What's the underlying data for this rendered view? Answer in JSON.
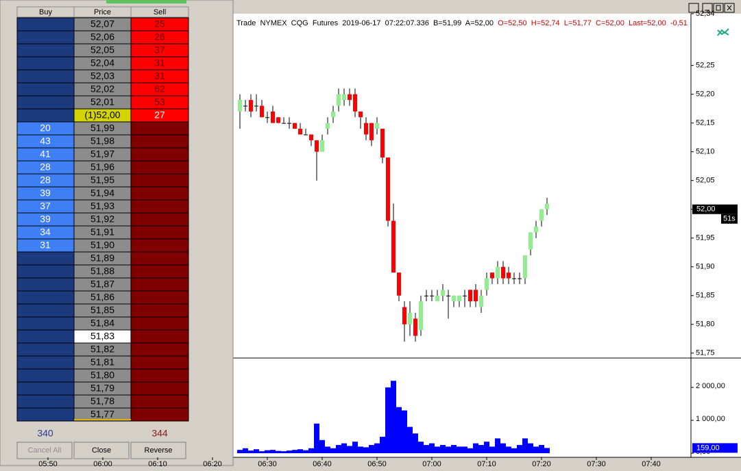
{
  "ladder": {
    "headers": [
      "Buy",
      "Price",
      "Sell"
    ],
    "rows": [
      {
        "price": "52,07",
        "buy": null,
        "sell": 25
      },
      {
        "price": "52,06",
        "buy": null,
        "sell": 26
      },
      {
        "price": "52,05",
        "buy": null,
        "sell": 37
      },
      {
        "price": "52,04",
        "buy": null,
        "sell": 31
      },
      {
        "price": "52,03",
        "buy": null,
        "sell": 31
      },
      {
        "price": "52,02",
        "buy": null,
        "sell": 62
      },
      {
        "price": "52,01",
        "buy": null,
        "sell": 53
      },
      {
        "price": "(1)52,00",
        "buy": null,
        "sell": 27
      },
      {
        "price": "51,99",
        "buy": 20,
        "sell": null
      },
      {
        "price": "51,98",
        "buy": 43,
        "sell": null
      },
      {
        "price": "51,97",
        "buy": 41,
        "sell": null
      },
      {
        "price": "51,96",
        "buy": 28,
        "sell": null
      },
      {
        "price": "51,95",
        "buy": 28,
        "sell": null
      },
      {
        "price": "51,94",
        "buy": 39,
        "sell": null
      },
      {
        "price": "51,93",
        "buy": 37,
        "sell": null
      },
      {
        "price": "51,92",
        "buy": 39,
        "sell": null
      },
      {
        "price": "51,91",
        "buy": 34,
        "sell": null
      },
      {
        "price": "51,90",
        "buy": 31,
        "sell": null
      },
      {
        "price": "51,89",
        "buy": null,
        "sell": null
      },
      {
        "price": "51,88",
        "buy": null,
        "sell": null
      },
      {
        "price": "51,87",
        "buy": null,
        "sell": null
      },
      {
        "price": "51,86",
        "buy": null,
        "sell": null
      },
      {
        "price": "51,85",
        "buy": null,
        "sell": null
      },
      {
        "price": "51,84",
        "buy": null,
        "sell": null
      },
      {
        "price": "51,83",
        "buy": null,
        "sell": null
      },
      {
        "price": "51,82",
        "buy": null,
        "sell": null
      },
      {
        "price": "51,81",
        "buy": null,
        "sell": null
      },
      {
        "price": "51,80",
        "buy": null,
        "sell": null
      },
      {
        "price": "51,79",
        "buy": null,
        "sell": null
      },
      {
        "price": "51,78",
        "buy": null,
        "sell": null
      },
      {
        "price": "51,77",
        "buy": null,
        "sell": null
      }
    ],
    "totals": {
      "buy": 340,
      "sell": 344
    },
    "buttons": [
      "Cancel All",
      "Close",
      "Reverse"
    ]
  },
  "chart_data": {
    "type": "candlestick",
    "info": [
      {
        "text": "Trade  NYMEX  CQG  Futures  2019-06-17  07:22:07.336  B=51,99  A=52,00  ",
        "color": "#000000"
      },
      {
        "text": "O=52,50  H=52,74  L=51,77  C=52,00  Last=52,00  -0,51",
        "color": "#cc0000"
      }
    ],
    "x": [
      "06:25",
      "06:26",
      "06:27",
      "06:28",
      "06:29",
      "06:30",
      "06:31",
      "06:32",
      "06:33",
      "06:34",
      "06:35",
      "06:36",
      "06:37",
      "06:38",
      "06:39",
      "06:40",
      "06:41",
      "06:42",
      "06:43",
      "06:44",
      "06:45",
      "06:46",
      "06:47",
      "06:48",
      "06:49",
      "06:50",
      "06:51",
      "06:52",
      "06:53",
      "06:54",
      "06:55",
      "06:56",
      "06:57",
      "06:58",
      "06:59",
      "07:00",
      "07:01",
      "07:02",
      "07:03",
      "07:04",
      "07:05",
      "07:06",
      "07:07",
      "07:08",
      "07:09",
      "07:10",
      "07:11",
      "07:12",
      "07:13",
      "07:14",
      "07:15",
      "07:16",
      "07:17",
      "07:18",
      "07:19",
      "07:20",
      "07:21"
    ],
    "open": [
      52.17,
      52.18,
      52.19,
      52.18,
      52.18,
      52.16,
      52.17,
      52.16,
      52.15,
      52.15,
      52.15,
      52.14,
      52.13,
      52.13,
      52.12,
      52.1,
      52.14,
      52.16,
      52.18,
      52.19,
      52.2,
      52.2,
      52.17,
      52.15,
      52.15,
      52.14,
      52.14,
      52.09,
      51.98,
      51.89,
      51.83,
      51.8,
      51.81,
      51.79,
      51.85,
      51.85,
      51.84,
      51.85,
      51.85,
      51.84,
      51.84,
      51.85,
      51.86,
      51.86,
      51.83,
      51.86,
      51.89,
      51.88,
      51.9,
      51.89,
      51.88,
      51.88,
      51.88,
      51.93,
      51.96,
      51.98,
      52.0
    ],
    "high": [
      52.2,
      52.19,
      52.2,
      52.2,
      52.19,
      52.17,
      52.18,
      52.16,
      52.16,
      52.16,
      52.15,
      52.15,
      52.14,
      52.13,
      52.12,
      52.13,
      52.16,
      52.18,
      52.21,
      52.21,
      52.21,
      52.21,
      52.17,
      52.16,
      52.15,
      52.16,
      52.14,
      52.09,
      52.01,
      51.89,
      51.84,
      51.84,
      51.82,
      51.85,
      51.86,
      51.86,
      51.86,
      51.87,
      51.86,
      51.85,
      51.85,
      51.86,
      51.86,
      51.87,
      51.86,
      51.89,
      51.89,
      51.91,
      51.91,
      51.9,
      51.89,
      51.89,
      51.92,
      51.96,
      51.98,
      52.0,
      52.02
    ],
    "low": [
      52.14,
      52.17,
      52.16,
      52.17,
      52.16,
      52.15,
      52.15,
      52.15,
      52.15,
      52.14,
      52.14,
      52.13,
      52.13,
      52.11,
      52.05,
      52.1,
      52.13,
      52.15,
      52.17,
      52.18,
      52.18,
      52.16,
      52.14,
      52.12,
      52.11,
      52.13,
      52.08,
      51.97,
      51.89,
      51.84,
      51.77,
      51.78,
      51.77,
      51.78,
      51.84,
      51.84,
      51.84,
      51.84,
      51.81,
      51.83,
      51.83,
      51.83,
      51.83,
      51.83,
      51.82,
      51.85,
      51.87,
      51.87,
      51.87,
      51.87,
      51.87,
      51.87,
      51.87,
      51.92,
      51.95,
      51.97,
      51.99
    ],
    "close": [
      52.19,
      52.18,
      52.17,
      52.18,
      52.16,
      52.16,
      52.15,
      52.15,
      52.15,
      52.15,
      52.14,
      52.13,
      52.13,
      52.12,
      52.1,
      52.12,
      52.15,
      52.17,
      52.2,
      52.2,
      52.19,
      52.17,
      52.16,
      52.13,
      52.12,
      52.15,
      52.09,
      51.98,
      51.89,
      51.85,
      51.8,
      51.82,
      51.78,
      51.84,
      51.85,
      51.85,
      51.85,
      51.86,
      51.85,
      51.85,
      51.85,
      51.85,
      51.84,
      51.84,
      51.85,
      51.88,
      51.88,
      51.9,
      51.88,
      51.88,
      51.88,
      51.88,
      51.92,
      51.96,
      51.97,
      52.0,
      52.01
    ],
    "up_color": "#90ee90",
    "down_color": "#ff0000",
    "ylim": [
      51.745,
      52.34
    ],
    "yticks": [
      {
        "value": 51.75,
        "label": "51,75"
      },
      {
        "value": 51.8,
        "label": "51,80"
      },
      {
        "value": 51.85,
        "label": "51,85"
      },
      {
        "value": 51.9,
        "label": "51,90"
      },
      {
        "value": 51.95,
        "label": "51,95"
      },
      {
        "value": 52.0,
        "label": "52,00"
      },
      {
        "value": 52.05,
        "label": "52,05"
      },
      {
        "value": 52.1,
        "label": "52,10"
      },
      {
        "value": 52.15,
        "label": "52,15"
      },
      {
        "value": 52.2,
        "label": "52,20"
      },
      {
        "value": 52.25,
        "label": "52,25"
      },
      {
        "value": 52.34,
        "label": "52,34"
      }
    ],
    "current": {
      "value": 52.0,
      "label": "52,00"
    },
    "timer": "51s",
    "xticks": [
      "05:50",
      "06:00",
      "06:10",
      "06:20",
      "06:30",
      "06:40",
      "06:50",
      "07:00",
      "07:10",
      "07:20",
      "07:30",
      "07:40"
    ],
    "volume": {
      "values": [
        100,
        150,
        80,
        120,
        60,
        90,
        100,
        70,
        60,
        80,
        100,
        120,
        90,
        150,
        900,
        400,
        200,
        150,
        250,
        300,
        220,
        350,
        200,
        180,
        250,
        300,
        500,
        2000,
        2200,
        1400,
        1300,
        800,
        600,
        350,
        250,
        300,
        200,
        250,
        200,
        250,
        200,
        200,
        150,
        300,
        250,
        350,
        200,
        450,
        300,
        200,
        150,
        250,
        450,
        300,
        200,
        250,
        159
      ],
      "color": "#0000ff",
      "ylim": [
        0,
        2850
      ],
      "yticks": [
        {
          "value": 0,
          "label": "0,00"
        },
        {
          "value": 1000,
          "label": "1 000,00"
        },
        {
          "value": 2000,
          "label": "2 000,00"
        }
      ],
      "current": {
        "value": 159,
        "label": "159,00"
      }
    }
  }
}
